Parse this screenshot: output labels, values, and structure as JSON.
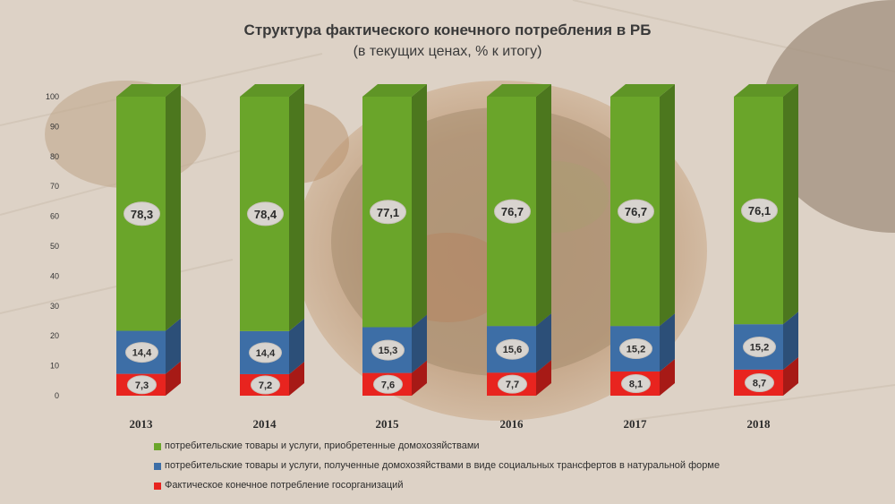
{
  "title": "Структура фактического конечного потребления в РБ",
  "subtitle": "(в текущих ценах, % к итогу)",
  "colors": {
    "green": "#6aa52a",
    "blue": "#3d6ea6",
    "red": "#e8241f"
  },
  "legend": [
    {
      "label": "потребительские товары и услуги, приобретенные домохозяйствами",
      "color": "#6aa52a"
    },
    {
      "label": "потребительские товары и услуги, полученные домохозяйствами в виде социальных трансфертов в натуральной форме",
      "color": "#3d6ea6"
    },
    {
      "label": "Фактическое конечное потребление госорганизаций",
      "color": "#e8241f"
    }
  ],
  "chart_data": {
    "type": "bar",
    "stacked": true,
    "categories": [
      "2013",
      "2014",
      "2015",
      "2016",
      "2017",
      "2018"
    ],
    "series": [
      {
        "name": "Фактическое конечное потребление госорганизаций",
        "color": "#e8241f",
        "values": [
          7.3,
          7.2,
          7.6,
          7.7,
          8.1,
          8.7
        ],
        "labels": [
          "7,3",
          "7,2",
          "7,6",
          "7,7",
          "8,1",
          "8,7"
        ]
      },
      {
        "name": "потребительские товары и услуги, полученные домохозяйствами в виде социальных трансфертов в натуральной форме",
        "color": "#3d6ea6",
        "values": [
          14.4,
          14.4,
          15.3,
          15.6,
          15.2,
          15.2
        ],
        "labels": [
          "14,4",
          "14,4",
          "15,3",
          "15,6",
          "15,2",
          "15,2"
        ]
      },
      {
        "name": "потребительские товары и услуги, приобретенные домохозяйствами",
        "color": "#6aa52a",
        "values": [
          78.3,
          78.4,
          77.1,
          76.7,
          76.7,
          76.1
        ],
        "labels": [
          "78,3",
          "78,4",
          "77,1",
          "76,7",
          "76,7",
          "76,1"
        ]
      }
    ],
    "y_ticks": [
      "0",
      "10",
      "20",
      "30",
      "40",
      "50",
      "60",
      "70",
      "80",
      "90",
      "100"
    ],
    "ylim": [
      0,
      100
    ],
    "grid": false,
    "legend_position": "bottom-left"
  }
}
